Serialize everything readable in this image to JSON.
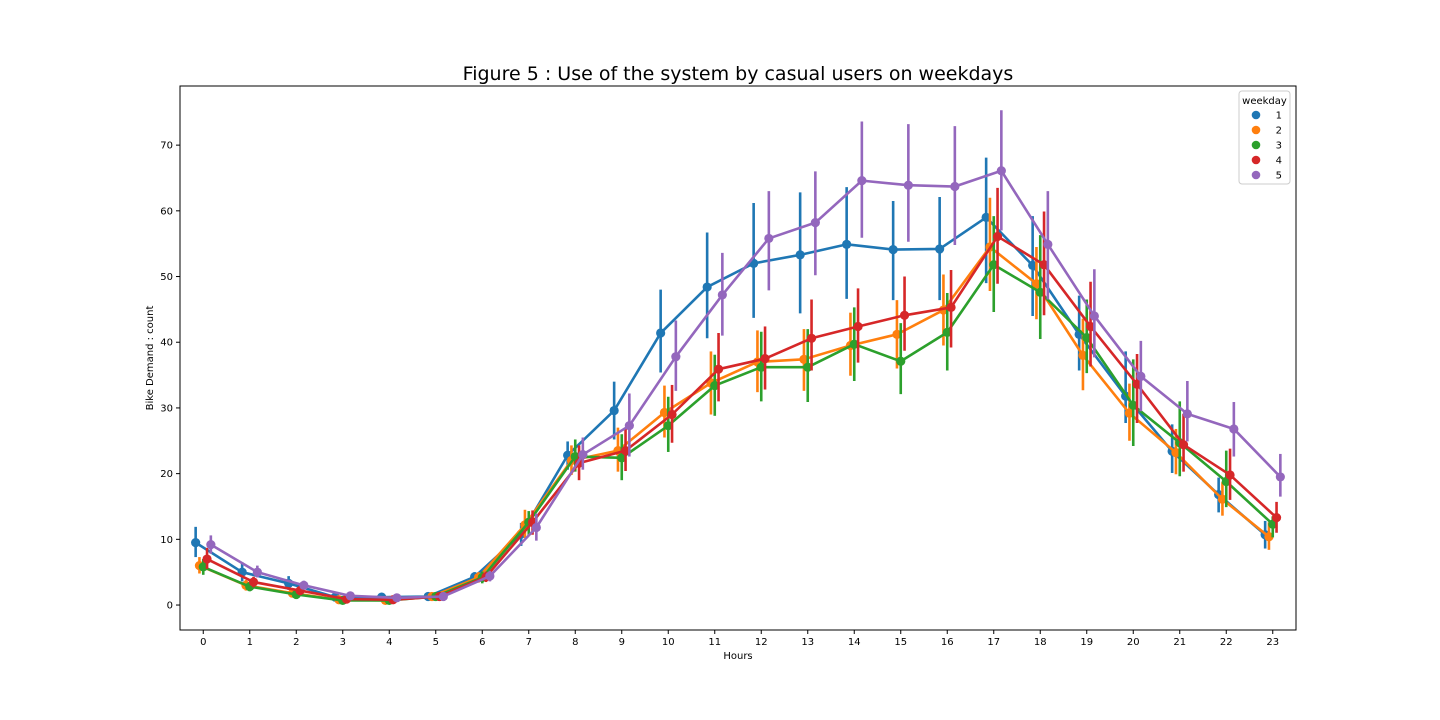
{
  "chart_data": {
    "type": "line",
    "title": "Figure 5 : Use of the system by casual users on weekdays",
    "xlabel": "Hours",
    "ylabel": "Bike Demand : count",
    "ylim": [
      -3.8,
      79
    ],
    "y_ticks": [
      0,
      10,
      20,
      30,
      40,
      50,
      60,
      70
    ],
    "categories": [
      "0",
      "1",
      "2",
      "3",
      "4",
      "5",
      "6",
      "7",
      "8",
      "9",
      "10",
      "11",
      "12",
      "13",
      "14",
      "15",
      "16",
      "17",
      "18",
      "19",
      "20",
      "21",
      "22",
      "23"
    ],
    "legend": {
      "title": "weekday",
      "position": "top-right"
    },
    "series": [
      {
        "name": "1",
        "color": "#1f77b4",
        "values": [
          9.5,
          5.0,
          3.3,
          1.2,
          1.2,
          1.3,
          4.3,
          10.8,
          22.8,
          29.6,
          41.4,
          48.4,
          52.0,
          53.3,
          54.9,
          54.1,
          54.2,
          59.0,
          51.7,
          41.2,
          31.8,
          23.4,
          16.8,
          10.7
        ],
        "err_low": [
          7.3,
          3.6,
          2.3,
          0.8,
          0.8,
          0.9,
          3.5,
          9.0,
          20.6,
          25.2,
          35.4,
          40.6,
          43.7,
          44.4,
          46.6,
          46.4,
          46.4,
          49.0,
          44.0,
          35.7,
          27.7,
          20.1,
          14.1,
          8.6
        ],
        "err_high": [
          11.9,
          6.5,
          4.4,
          1.5,
          1.6,
          1.6,
          5.0,
          12.5,
          24.9,
          34.0,
          48.0,
          56.7,
          61.2,
          62.8,
          63.6,
          61.5,
          62.1,
          68.1,
          59.2,
          47.1,
          38.6,
          27.5,
          19.4,
          12.8
        ]
      },
      {
        "name": "2",
        "color": "#ff7f0e",
        "values": [
          6.0,
          3.0,
          1.8,
          0.8,
          0.7,
          1.3,
          4.2,
          12.2,
          22.0,
          23.5,
          29.3,
          33.8,
          37.0,
          37.4,
          39.5,
          41.2,
          44.9,
          54.5,
          48.9,
          38.0,
          29.2,
          23.2,
          16.1,
          10.4
        ],
        "err_low": [
          4.8,
          2.2,
          1.2,
          0.5,
          0.5,
          0.9,
          3.4,
          10.2,
          19.8,
          20.3,
          25.5,
          29.0,
          32.4,
          32.6,
          34.9,
          36.0,
          39.5,
          47.8,
          43.5,
          32.7,
          25.0,
          19.9,
          13.6,
          8.4
        ],
        "err_high": [
          7.3,
          3.8,
          2.4,
          1.1,
          1.0,
          1.6,
          5.0,
          14.5,
          24.3,
          27.0,
          33.4,
          38.6,
          41.8,
          42.0,
          44.5,
          46.4,
          50.3,
          62.0,
          54.5,
          43.6,
          33.7,
          26.8,
          18.7,
          12.6
        ]
      },
      {
        "name": "3",
        "color": "#2ca02c",
        "values": [
          5.8,
          2.8,
          1.6,
          0.7,
          0.7,
          1.3,
          4.2,
          12.6,
          22.6,
          22.4,
          27.3,
          33.4,
          36.2,
          36.2,
          39.7,
          37.1,
          41.5,
          51.8,
          47.6,
          40.7,
          30.4,
          24.7,
          18.8,
          12.3
        ],
        "err_low": [
          4.6,
          2.1,
          1.0,
          0.4,
          0.4,
          0.9,
          3.3,
          10.6,
          20.3,
          19.0,
          23.3,
          28.8,
          31.0,
          30.9,
          34.1,
          32.1,
          35.7,
          44.6,
          40.5,
          35.3,
          24.2,
          19.6,
          14.9,
          10.3
        ],
        "err_high": [
          7.0,
          3.5,
          2.2,
          1.0,
          1.0,
          1.6,
          5.1,
          14.3,
          25.2,
          26.0,
          31.7,
          38.1,
          41.6,
          42.0,
          45.3,
          42.9,
          47.5,
          59.2,
          56.3,
          46.5,
          37.4,
          31.0,
          23.5,
          13.5
        ]
      },
      {
        "name": "4",
        "color": "#d62728",
        "values": [
          7.0,
          3.5,
          2.2,
          0.9,
          0.8,
          1.3,
          4.3,
          12.6,
          21.6,
          23.5,
          29.0,
          35.9,
          37.5,
          40.6,
          42.4,
          44.1,
          45.3,
          56.1,
          51.8,
          42.4,
          33.6,
          24.4,
          19.8,
          13.3
        ],
        "err_low": [
          5.5,
          2.7,
          1.5,
          0.6,
          0.5,
          0.9,
          3.5,
          10.7,
          19.0,
          20.4,
          24.7,
          31.0,
          32.8,
          35.7,
          36.9,
          38.7,
          39.2,
          48.9,
          44.1,
          36.3,
          27.7,
          20.3,
          16.0,
          11.0
        ],
        "err_high": [
          8.7,
          4.3,
          2.9,
          1.2,
          1.1,
          1.7,
          5.1,
          14.4,
          24.3,
          26.9,
          33.5,
          41.4,
          42.4,
          46.5,
          48.2,
          50.0,
          51.0,
          63.5,
          59.9,
          49.2,
          38.2,
          29.1,
          23.8,
          15.7
        ]
      },
      {
        "name": "5",
        "color": "#9467bd",
        "values": [
          9.2,
          5.0,
          3.0,
          1.4,
          1.1,
          1.3,
          4.4,
          11.8,
          22.9,
          27.3,
          37.8,
          47.2,
          55.8,
          58.2,
          64.6,
          63.9,
          63.7,
          66.1,
          54.9,
          44.0,
          34.8,
          29.1,
          26.8,
          19.5
        ],
        "err_low": [
          7.8,
          4.2,
          2.4,
          1.0,
          0.8,
          1.0,
          3.6,
          9.8,
          20.6,
          22.6,
          32.6,
          41.0,
          47.9,
          50.2,
          55.9,
          55.3,
          54.8,
          57.0,
          46.5,
          37.7,
          29.5,
          24.9,
          22.6,
          16.5
        ],
        "err_high": [
          10.6,
          6.0,
          3.7,
          1.8,
          1.4,
          1.7,
          5.2,
          13.9,
          25.5,
          32.2,
          43.3,
          53.6,
          63.0,
          66.0,
          73.6,
          73.2,
          72.9,
          75.3,
          63.0,
          51.1,
          40.2,
          34.1,
          30.9,
          23.0
        ]
      }
    ]
  }
}
